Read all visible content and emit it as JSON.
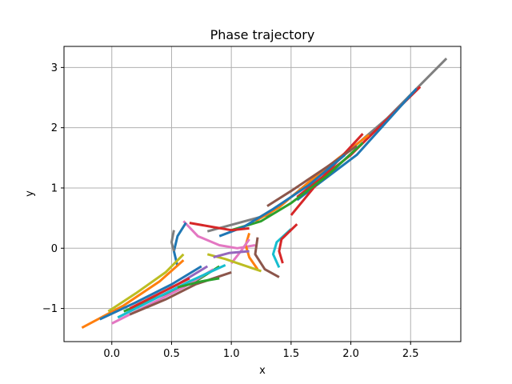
{
  "chart_data": {
    "type": "line",
    "title": "Phase trajectory",
    "xlabel": "x",
    "ylabel": "y",
    "xlim": [
      -0.4,
      2.92
    ],
    "ylim": [
      -1.55,
      3.35
    ],
    "xticks": [
      0.0,
      0.5,
      1.0,
      1.5,
      2.0,
      2.5
    ],
    "xtick_labels": [
      "0.0",
      "0.5",
      "1.0",
      "1.5",
      "2.0",
      "2.5"
    ],
    "yticks": [
      -1,
      0,
      1,
      2,
      3
    ],
    "ytick_labels": [
      "−1",
      "0",
      "1",
      "2",
      "3"
    ],
    "grid": true,
    "legend": "none",
    "colors": [
      "#1f77b4",
      "#ff7f0e",
      "#2ca02c",
      "#d62728",
      "#9467bd",
      "#8c564b",
      "#e377c2",
      "#7f7f7f",
      "#bcbd22",
      "#17becf"
    ],
    "series": [
      {
        "color": "#7f7f7f",
        "x": [
          0.8,
          1.3,
          1.8,
          2.3,
          2.8
        ],
        "y": [
          0.28,
          0.55,
          1.3,
          2.15,
          3.15
        ]
      },
      {
        "color": "#d62728",
        "x": [
          1.55,
          2.0,
          2.58
        ],
        "y": [
          0.85,
          1.55,
          2.68
        ]
      },
      {
        "color": "#1f77b4",
        "x": [
          1.55,
          2.05,
          2.55
        ],
        "y": [
          0.8,
          1.55,
          2.65
        ]
      },
      {
        "color": "#ff7f0e",
        "x": [
          1.2,
          1.4,
          1.65,
          1.9,
          2.15
        ],
        "y": [
          0.45,
          0.68,
          1.1,
          1.5,
          1.88
        ]
      },
      {
        "color": "#d62728",
        "x": [
          1.5,
          1.75,
          2.1
        ],
        "y": [
          0.55,
          1.15,
          1.9
        ]
      },
      {
        "color": "#2ca02c",
        "x": [
          1.0,
          1.25,
          1.5,
          1.8,
          2.1
        ],
        "y": [
          0.3,
          0.45,
          0.75,
          1.2,
          1.75
        ]
      },
      {
        "color": "#8c564b",
        "x": [
          1.3,
          1.5,
          1.8,
          2.05
        ],
        "y": [
          0.7,
          0.95,
          1.35,
          1.7
        ]
      },
      {
        "color": "#1f77b4",
        "x": [
          0.9,
          1.1,
          1.35,
          1.65,
          1.95
        ],
        "y": [
          0.2,
          0.35,
          0.65,
          1.05,
          1.55
        ]
      },
      {
        "color": "#d62728",
        "x": [
          0.65,
          0.85,
          1.0,
          1.15
        ],
        "y": [
          0.42,
          0.35,
          0.3,
          0.33
        ]
      },
      {
        "color": "#e377c2",
        "x": [
          0.6,
          0.72,
          0.9,
          1.05,
          1.2
        ],
        "y": [
          0.45,
          0.2,
          0.05,
          0.0,
          0.05
        ]
      },
      {
        "color": "#8c564b",
        "x": [
          1.4,
          1.28,
          1.2,
          1.22
        ],
        "y": [
          -0.48,
          -0.35,
          -0.1,
          0.18
        ]
      },
      {
        "color": "#17becf",
        "x": [
          1.4,
          1.35,
          1.38,
          1.5
        ],
        "y": [
          -0.32,
          -0.1,
          0.1,
          0.32
        ]
      },
      {
        "color": "#d62728",
        "x": [
          1.43,
          1.4,
          1.42,
          1.55
        ],
        "y": [
          -0.25,
          -0.05,
          0.15,
          0.4
        ]
      },
      {
        "color": "#ff7f0e",
        "x": [
          1.22,
          1.15,
          1.12,
          1.15
        ],
        "y": [
          -0.35,
          -0.15,
          0.05,
          0.25
        ]
      },
      {
        "color": "#e377c2",
        "x": [
          1.0,
          1.08,
          1.15
        ],
        "y": [
          -0.25,
          -0.05,
          0.15
        ]
      },
      {
        "color": "#bcbd22",
        "x": [
          1.25,
          1.1,
          0.95,
          0.8
        ],
        "y": [
          -0.38,
          -0.28,
          -0.18,
          -0.1
        ]
      },
      {
        "color": "#9467bd",
        "x": [
          1.15,
          0.98,
          0.85
        ],
        "y": [
          -0.05,
          -0.08,
          -0.15
        ]
      },
      {
        "color": "#1f77b4",
        "x": [
          0.55,
          0.52,
          0.55,
          0.62
        ],
        "y": [
          -0.3,
          -0.05,
          0.2,
          0.42
        ]
      },
      {
        "color": "#7f7f7f",
        "x": [
          0.52,
          0.5,
          0.52
        ],
        "y": [
          -0.05,
          0.1,
          0.3
        ]
      },
      {
        "color": "#ff7f0e",
        "x": [
          -0.25,
          0.1,
          0.4,
          0.6
        ],
        "y": [
          -1.32,
          -0.95,
          -0.55,
          -0.2
        ]
      },
      {
        "color": "#bcbd22",
        "x": [
          -0.03,
          0.2,
          0.45,
          0.6
        ],
        "y": [
          -1.05,
          -0.75,
          -0.4,
          -0.1
        ]
      },
      {
        "color": "#1f77b4",
        "x": [
          -0.1,
          0.2,
          0.5,
          0.75
        ],
        "y": [
          -1.18,
          -0.9,
          -0.6,
          -0.3
        ]
      },
      {
        "color": "#2ca02c",
        "x": [
          0.1,
          0.4,
          0.7,
          0.9
        ],
        "y": [
          -1.05,
          -0.8,
          -0.55,
          -0.3
        ]
      },
      {
        "color": "#e377c2",
        "x": [
          0.0,
          0.3,
          0.6,
          0.85
        ],
        "y": [
          -1.25,
          -0.95,
          -0.65,
          -0.35
        ]
      },
      {
        "color": "#8c564b",
        "x": [
          0.15,
          0.45,
          0.7,
          1.0
        ],
        "y": [
          -1.1,
          -0.85,
          -0.6,
          -0.4
        ]
      },
      {
        "color": "#17becf",
        "x": [
          0.05,
          0.35,
          0.65,
          0.95
        ],
        "y": [
          -1.15,
          -0.85,
          -0.55,
          -0.28
        ]
      },
      {
        "color": "#9467bd",
        "x": [
          0.3,
          0.55,
          0.8
        ],
        "y": [
          -0.85,
          -0.6,
          -0.3
        ]
      },
      {
        "color": "#2ca02c",
        "x": [
          0.55,
          0.75,
          0.9
        ],
        "y": [
          -0.65,
          -0.55,
          -0.5
        ]
      },
      {
        "color": "#d62728",
        "x": [
          0.15,
          0.4,
          0.65
        ],
        "y": [
          -1.0,
          -0.75,
          -0.5
        ]
      }
    ]
  }
}
